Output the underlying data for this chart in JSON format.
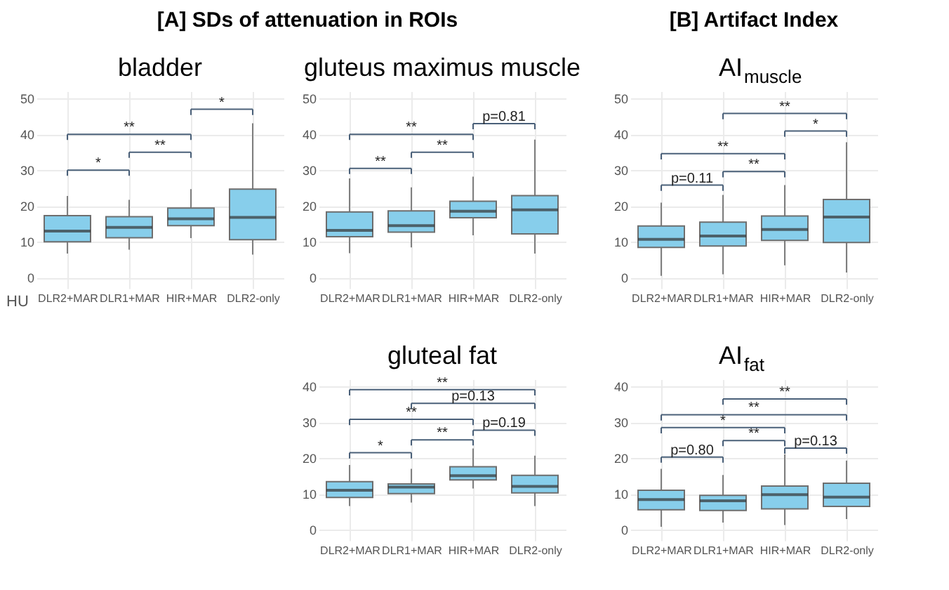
{
  "chart_data": [
    {
      "type": "other",
      "title": "[A] SDs of attenuation in ROIs"
    },
    {
      "type": "box",
      "title": "bladder",
      "ylabel": "HU",
      "categories": [
        "DLR2+MAR",
        "DLR1+MAR",
        "HIR+MAR",
        "DLR2-only"
      ],
      "ylim": [
        -3,
        52
      ],
      "yticks": [
        0,
        10,
        20,
        30,
        40,
        50
      ],
      "grid": true,
      "series": [
        {
          "color": "#87ceeb",
          "boxes": [
            {
              "low": 6.7,
              "q1": 10,
              "median": 13,
              "q3": 17.3,
              "high": 22.8
            },
            {
              "low": 7.8,
              "q1": 11.1,
              "median": 14,
              "q3": 17,
              "high": 21.7
            },
            {
              "low": 11,
              "q1": 14.5,
              "median": 16.4,
              "q3": 19.4,
              "high": 24.7
            },
            {
              "low": 6.4,
              "q1": 10.6,
              "median": 16.8,
              "q3": 24.7,
              "high": 43.1
            }
          ]
        }
      ],
      "annotations": [
        "*",
        "**",
        "**",
        "*"
      ]
    },
    {
      "type": "box",
      "title": "gluteus maximus muscle",
      "categories": [
        "DLR2+MAR",
        "DLR1+MAR",
        "HIR+MAR",
        "DLR2-only"
      ],
      "ylim": [
        -3,
        52
      ],
      "yticks": [
        0,
        10,
        20,
        30,
        40,
        50
      ],
      "grid": true,
      "series": [
        {
          "color": "#87ceeb",
          "boxes": [
            {
              "low": 6.8,
              "q1": 11.4,
              "median": 13.2,
              "q3": 18.3,
              "high": 27.7
            },
            {
              "low": 8.4,
              "q1": 12.7,
              "median": 14.5,
              "q3": 18.6,
              "high": 25.2
            },
            {
              "low": 11.8,
              "q1": 16.7,
              "median": 18.5,
              "q3": 21.3,
              "high": 28.2
            },
            {
              "low": 6.7,
              "q1": 12.2,
              "median": 18.9,
              "q3": 22.9,
              "high": 38.5
            }
          ]
        }
      ],
      "annotations": [
        "**",
        "**",
        "**",
        "p=0.81"
      ]
    },
    {
      "type": "box",
      "title": "gluteal fat",
      "categories": [
        "DLR2+MAR",
        "DLR1+MAR",
        "HIR+MAR",
        "DLR2-only"
      ],
      "ylim": [
        -3,
        42
      ],
      "yticks": [
        0,
        10,
        20,
        30,
        40
      ],
      "grid": true,
      "series": [
        {
          "color": "#87ceeb",
          "boxes": [
            {
              "low": 6.6,
              "q1": 9,
              "median": 11,
              "q3": 13.4,
              "high": 18.1
            },
            {
              "low": 7.6,
              "q1": 10.1,
              "median": 11.9,
              "q3": 12.8,
              "high": 17
            },
            {
              "low": 11.5,
              "q1": 13.9,
              "median": 15.1,
              "q3": 17.6,
              "high": 22.7
            },
            {
              "low": 6.6,
              "q1": 10.3,
              "median": 12.1,
              "q3": 15.2,
              "high": 20.7
            }
          ]
        }
      ],
      "annotations": [
        "*",
        "**",
        "p=0.19",
        "**",
        "p=0.13",
        "**"
      ]
    },
    {
      "type": "other",
      "title": "[B] Artifact Index"
    },
    {
      "type": "box",
      "title": "AI$_{muscle}$",
      "categories": [
        "DLR2+MAR",
        "DLR1+MAR",
        "HIR+MAR",
        "DLR2-only"
      ],
      "ylim": [
        -3,
        52
      ],
      "yticks": [
        0,
        10,
        20,
        30,
        40,
        50
      ],
      "grid": true,
      "series": [
        {
          "color": "#87ceeb",
          "boxes": [
            {
              "low": 0.5,
              "q1": 8.4,
              "median": 10.7,
              "q3": 14.4,
              "high": 20.9
            },
            {
              "low": 0.9,
              "q1": 8.8,
              "median": 11.6,
              "q3": 15.5,
              "high": 23.1
            },
            {
              "low": 3.4,
              "q1": 10.4,
              "median": 13.4,
              "q3": 17.2,
              "high": 25.8
            },
            {
              "low": 1.4,
              "q1": 9.8,
              "median": 16.9,
              "q3": 21.8,
              "high": 37.8
            }
          ]
        }
      ],
      "annotations": [
        "p=0.11",
        "**",
        "**",
        "*",
        "**"
      ]
    },
    {
      "type": "box",
      "title": "AI$_{fat}$",
      "categories": [
        "DLR2+MAR",
        "DLR1+MAR",
        "HIR+MAR",
        "DLR2-only"
      ],
      "ylim": [
        -3,
        42
      ],
      "yticks": [
        0,
        10,
        20,
        30,
        40
      ],
      "grid": true,
      "series": [
        {
          "color": "#87ceeb",
          "boxes": [
            {
              "low": 0.8,
              "q1": 5.6,
              "median": 8.4,
              "q3": 11,
              "high": 17
            },
            {
              "low": 2,
              "q1": 5.4,
              "median": 8.1,
              "q3": 9.6,
              "high": 15.3
            },
            {
              "low": 1.3,
              "q1": 5.8,
              "median": 9.8,
              "q3": 12.2,
              "high": 21
            },
            {
              "low": 3,
              "q1": 6.5,
              "median": 9.1,
              "q3": 13,
              "high": 19.3
            }
          ]
        }
      ],
      "annotations": [
        "p=0.80",
        "p=0.13",
        "**",
        "*",
        "**",
        "**"
      ]
    }
  ]
}
